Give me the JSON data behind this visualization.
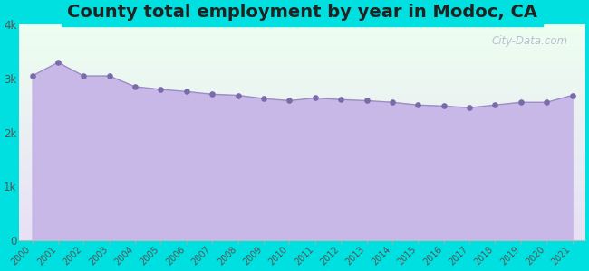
{
  "title": "County total employment by year in Modoc, CA",
  "years": [
    2000,
    2001,
    2002,
    2003,
    2004,
    2005,
    2006,
    2007,
    2008,
    2009,
    2010,
    2011,
    2012,
    2013,
    2014,
    2015,
    2016,
    2017,
    2018,
    2019,
    2020,
    2021
  ],
  "values": [
    3050,
    3300,
    3050,
    3050,
    2850,
    2800,
    2760,
    2710,
    2690,
    2630,
    2590,
    2640,
    2610,
    2590,
    2560,
    2510,
    2490,
    2460,
    2510,
    2560,
    2560,
    2690
  ],
  "line_color": "#9b8ec4",
  "fill_color": "#c8b8e8",
  "marker_color": "#7a6aaa",
  "background_color": "#00e0e0",
  "plot_bg_top": "#edfff0",
  "plot_bg_bottom": "#e8e0f5",
  "title_fontsize": 14,
  "title_color": "#222222",
  "ylim": [
    0,
    4000
  ],
  "yticks": [
    0,
    1000,
    2000,
    3000,
    4000
  ],
  "ytick_labels": [
    "0",
    "1k",
    "2k",
    "3k",
    "4k"
  ],
  "watermark": "City-Data.com"
}
